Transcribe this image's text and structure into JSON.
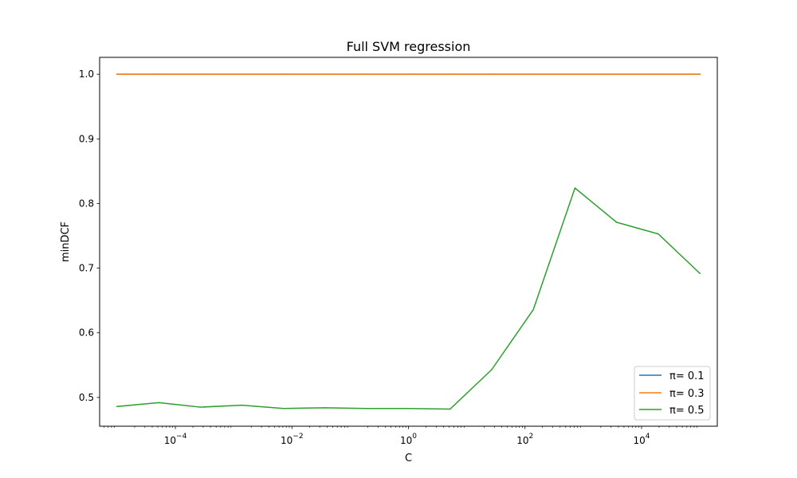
{
  "chart_data": {
    "type": "line",
    "title": "Full SVM regression",
    "xlabel": "C",
    "ylabel": "minDCF",
    "xscale": "log",
    "xlim": [
      5.01e-06,
      199500
    ],
    "ylim": [
      0.4555,
      1.0261
    ],
    "x_ticks": [
      {
        "value": 0.0001,
        "base": "10",
        "exp": "−4"
      },
      {
        "value": 0.01,
        "base": "10",
        "exp": "−2"
      },
      {
        "value": 1,
        "base": "10",
        "exp": "0"
      },
      {
        "value": 100,
        "base": "10",
        "exp": "2"
      },
      {
        "value": 10000,
        "base": "10",
        "exp": "4"
      }
    ],
    "y_ticks": [
      {
        "value": 0.5,
        "label": "0.5"
      },
      {
        "value": 0.6,
        "label": "0.6"
      },
      {
        "value": 0.7,
        "label": "0.7"
      },
      {
        "value": 0.8,
        "label": "0.8"
      },
      {
        "value": 0.9,
        "label": "0.9"
      },
      {
        "value": 1.0,
        "label": "1.0"
      }
    ],
    "x": [
      1e-05,
      5.18e-05,
      0.000268,
      0.00139,
      0.0072,
      0.0373,
      0.193,
      1,
      5.18,
      26.8,
      139,
      720,
      3728,
      19307,
      100000
    ],
    "series": [
      {
        "name": "π= 0.1",
        "color": "#1f77b4",
        "values": [
          1.0,
          1.0,
          1.0,
          1.0,
          1.0,
          1.0,
          1.0,
          1.0,
          1.0,
          1.0,
          1.0,
          1.0,
          1.0,
          1.0,
          1.0
        ]
      },
      {
        "name": "π= 0.3",
        "color": "#ff7f0e",
        "values": [
          1.0,
          1.0,
          1.0,
          1.0,
          1.0,
          1.0,
          1.0,
          1.0,
          1.0,
          1.0,
          1.0,
          1.0,
          1.0,
          1.0,
          1.0
        ]
      },
      {
        "name": "π= 0.5",
        "color": "#2ca02c",
        "values": [
          0.486,
          0.492,
          0.485,
          0.488,
          0.483,
          0.484,
          0.483,
          0.483,
          0.482,
          0.543,
          0.636,
          0.824,
          0.771,
          0.753,
          0.692
        ]
      }
    ],
    "grid": false,
    "legend_position": "lower right"
  }
}
